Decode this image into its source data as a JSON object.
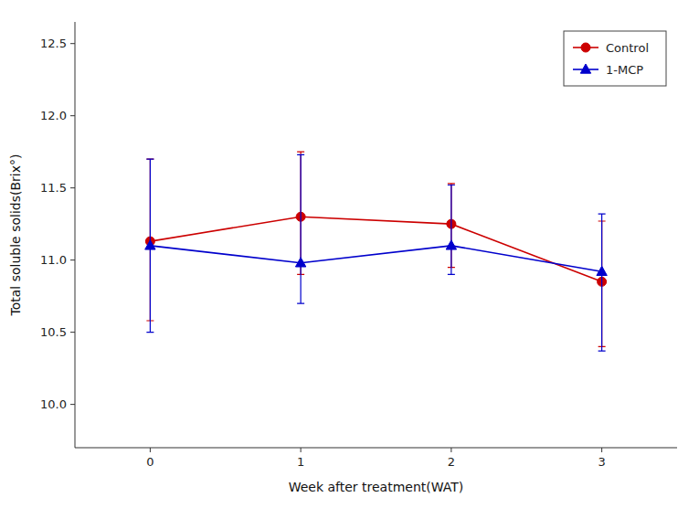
{
  "chart_data": {
    "type": "line",
    "xlabel": "Week after treatment(WAT)",
    "ylabel": "Total soluble solids(Brix°)",
    "x": [
      0,
      1,
      2,
      3
    ],
    "xlim": [
      -0.5,
      3.5
    ],
    "xticks": [
      0,
      1,
      2,
      3
    ],
    "ylim": [
      9.7,
      12.65
    ],
    "yticks": [
      {
        "value": 10.0,
        "label": "10.0"
      },
      {
        "value": 10.5,
        "label": "10.5"
      },
      {
        "value": 11.0,
        "label": "11.0"
      },
      {
        "value": 11.5,
        "label": "11.5"
      },
      {
        "value": 12.0,
        "label": "12.0"
      },
      {
        "value": 12.5,
        "label": "12.5"
      }
    ],
    "grid": false,
    "legend": "upper right",
    "series": [
      {
        "name": "Control",
        "color": "#cc0000",
        "marker": "circle",
        "line_style": "solid",
        "values": [
          11.13,
          11.3,
          11.25,
          10.85
        ],
        "error_lower": [
          0.55,
          0.4,
          0.3,
          0.45
        ],
        "error_upper": [
          0.57,
          0.45,
          0.28,
          0.42
        ]
      },
      {
        "name": "1-MCP",
        "color": "#0000cc",
        "marker": "triangle",
        "line_style": "solid",
        "values": [
          11.1,
          10.98,
          11.1,
          10.92
        ],
        "error_lower": [
          0.6,
          0.28,
          0.2,
          0.55
        ],
        "error_upper": [
          0.6,
          0.75,
          0.42,
          0.4
        ]
      }
    ]
  }
}
